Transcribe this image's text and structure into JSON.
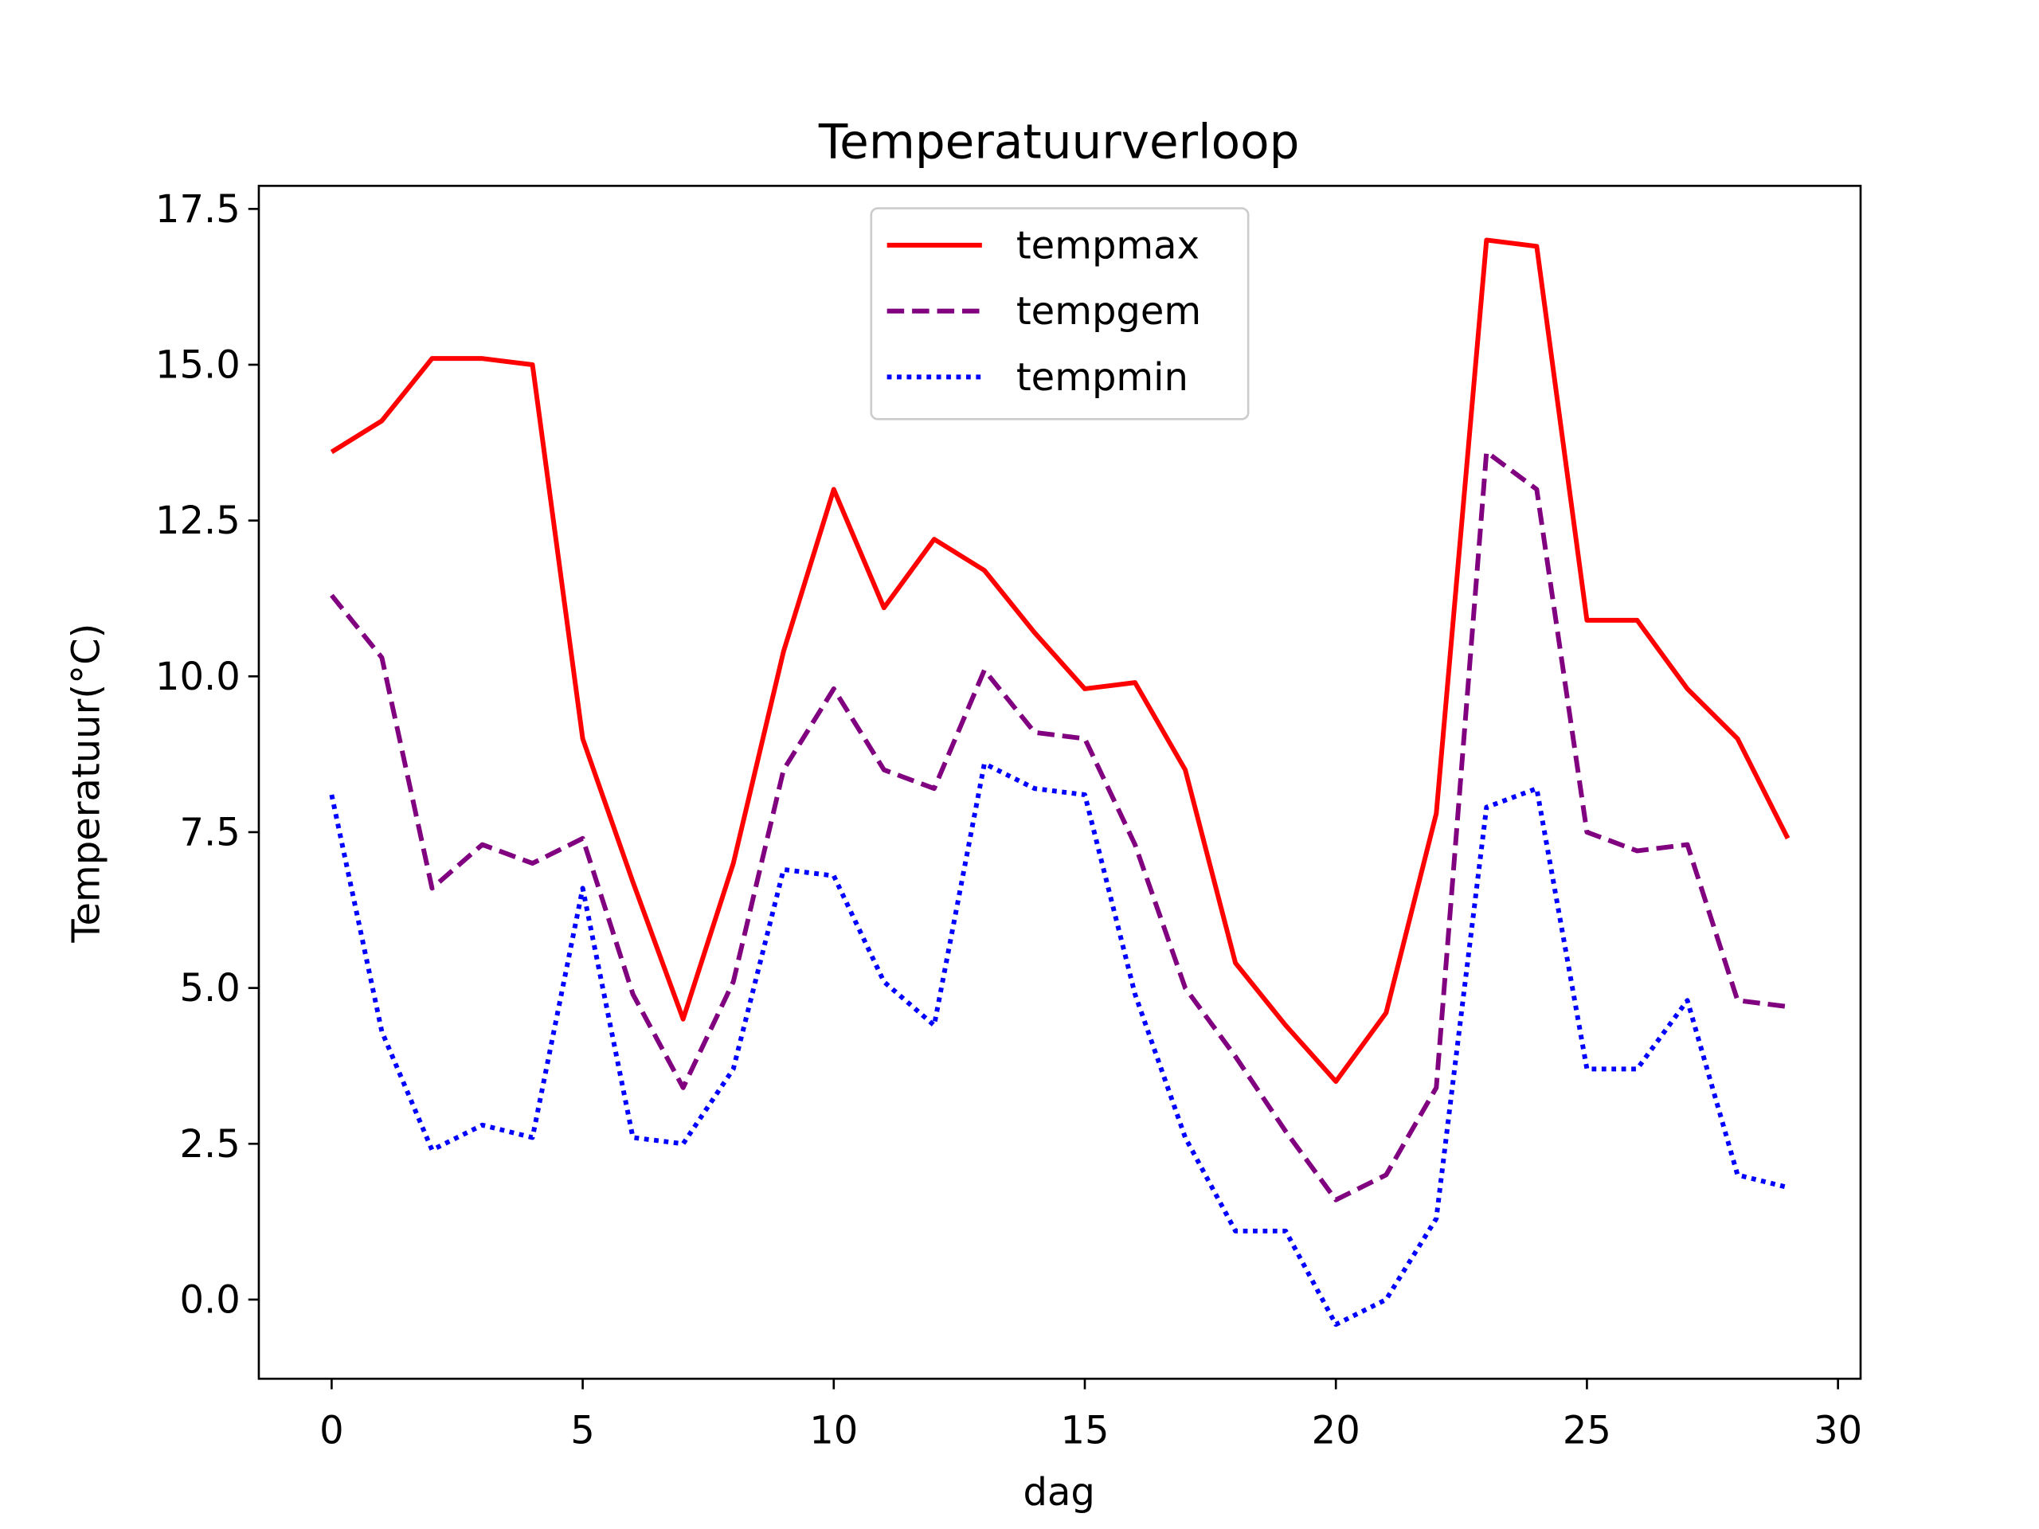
{
  "chart_data": {
    "type": "line",
    "title": "Temperatuurverloop",
    "x_label": "dag",
    "y_label": "Temperatuur(°C)",
    "x": [
      0,
      1,
      2,
      3,
      4,
      5,
      6,
      7,
      8,
      9,
      10,
      11,
      12,
      13,
      14,
      15,
      16,
      17,
      18,
      19,
      20,
      21,
      22,
      23,
      24,
      25,
      26,
      27,
      28,
      29
    ],
    "series": [
      {
        "name": "tempmax",
        "color": "#ff0000",
        "linestyle": "solid",
        "values": [
          13.6,
          14.1,
          15.1,
          15.1,
          15.0,
          9.0,
          6.7,
          4.5,
          7.0,
          10.4,
          13.0,
          11.1,
          12.2,
          11.7,
          10.7,
          9.8,
          9.9,
          8.5,
          5.4,
          4.4,
          3.5,
          4.6,
          7.8,
          17.0,
          16.9,
          10.9,
          10.9,
          9.8,
          9.0,
          7.4
        ]
      },
      {
        "name": "tempgem",
        "color": "#800080",
        "linestyle": "dashed",
        "values": [
          11.3,
          10.3,
          6.6,
          7.3,
          7.0,
          7.4,
          4.9,
          3.4,
          5.1,
          8.5,
          9.8,
          8.5,
          8.2,
          10.1,
          9.1,
          9.0,
          7.3,
          5.0,
          3.9,
          2.7,
          1.6,
          2.0,
          3.4,
          13.6,
          13.0,
          7.5,
          7.2,
          7.3,
          4.8,
          4.7
        ]
      },
      {
        "name": "tempmin",
        "color": "#0000ff",
        "linestyle": "dotted",
        "values": [
          8.1,
          4.3,
          2.4,
          2.8,
          2.6,
          6.6,
          2.6,
          2.5,
          3.7,
          6.9,
          6.8,
          5.1,
          4.4,
          8.6,
          8.2,
          8.1,
          4.9,
          2.6,
          1.1,
          1.1,
          -0.4,
          0.0,
          1.3,
          7.9,
          8.2,
          3.7,
          3.7,
          4.8,
          2.0,
          1.8
        ]
      }
    ],
    "xlim": [
      -1.45,
      30.45
    ],
    "ylim": [
      -1.27,
      17.87
    ],
    "xticks": [
      0,
      5,
      10,
      15,
      20,
      25,
      30
    ],
    "yticks": [
      {
        "value": 0,
        "label": "0.0"
      },
      {
        "value": 2.5,
        "label": "2.5"
      },
      {
        "value": 5,
        "label": "5.0"
      },
      {
        "value": 7.5,
        "label": "7.5"
      },
      {
        "value": 10,
        "label": "10.0"
      },
      {
        "value": 12.5,
        "label": "12.5"
      },
      {
        "value": 15,
        "label": "15.0"
      },
      {
        "value": 17.5,
        "label": "17.5"
      }
    ],
    "legend": "upper center",
    "grid": false
  }
}
